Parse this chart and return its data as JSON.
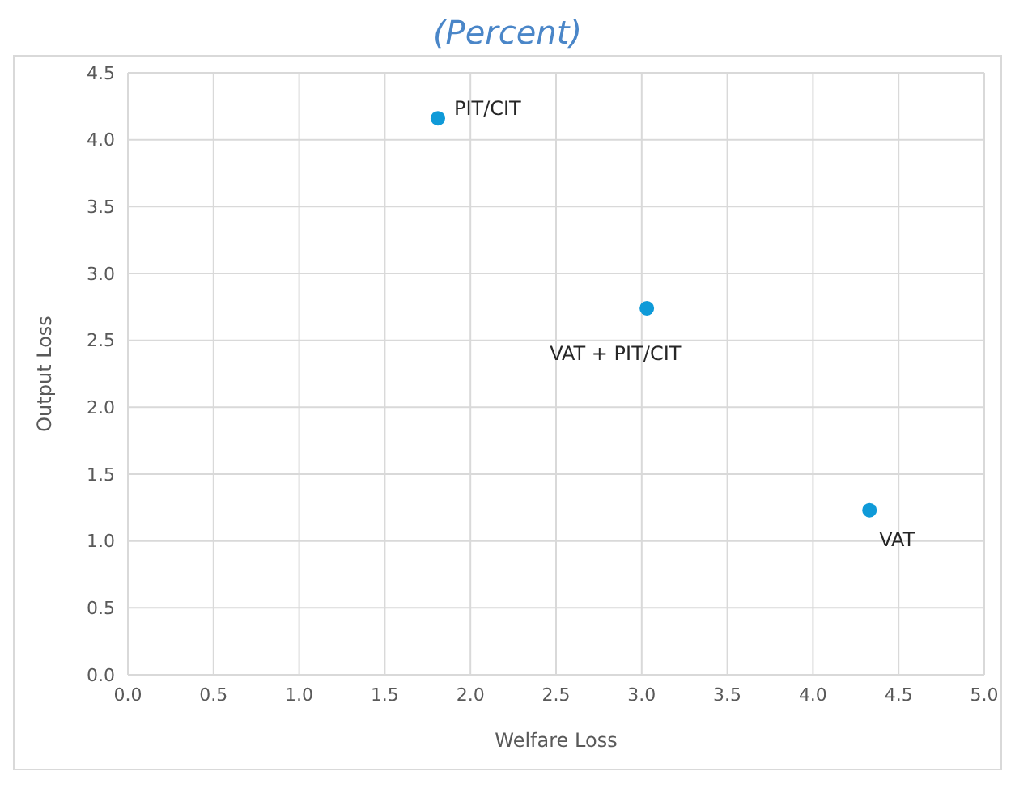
{
  "chart_data": {
    "type": "scatter",
    "title": "(Percent)",
    "xlabel": "Welfare Loss",
    "ylabel": "Output Loss",
    "x": [
      1.81,
      3.03,
      4.33
    ],
    "series": [
      {
        "color": "#0f9ad8",
        "values": [
          4.16,
          2.74,
          1.23
        ]
      }
    ],
    "annotations": [
      {
        "text": "PIT/CIT",
        "x": 1.81,
        "y": 4.16
      },
      {
        "text": "VAT + PIT/CIT",
        "x": 3.03,
        "y": 2.74
      },
      {
        "text": "VAT",
        "x": 4.33,
        "y": 1.23
      }
    ],
    "xlim": [
      0,
      5
    ],
    "xticks": [
      {
        "value": 0,
        "label": "0.0"
      },
      0.5,
      {
        "value": 1,
        "label": "1.0"
      },
      1.5,
      {
        "value": 2,
        "label": "2.0"
      },
      2.5,
      {
        "value": 3,
        "label": "3.0"
      },
      3.5,
      {
        "value": 4,
        "label": "4.0"
      },
      4.5,
      {
        "value": 5,
        "label": "5.0"
      }
    ],
    "ylim": [
      0,
      4.5
    ],
    "yticks": [
      {
        "value": 0,
        "label": "0.0"
      },
      0.5,
      {
        "value": 1,
        "label": "1.0"
      },
      1.5,
      {
        "value": 2,
        "label": "2.0"
      },
      2.5,
      {
        "value": 3,
        "label": "3.0"
      },
      3.5,
      {
        "value": 4,
        "label": "4.0"
      },
      4.5
    ],
    "grid": true,
    "marker": "circle",
    "legend": false
  }
}
